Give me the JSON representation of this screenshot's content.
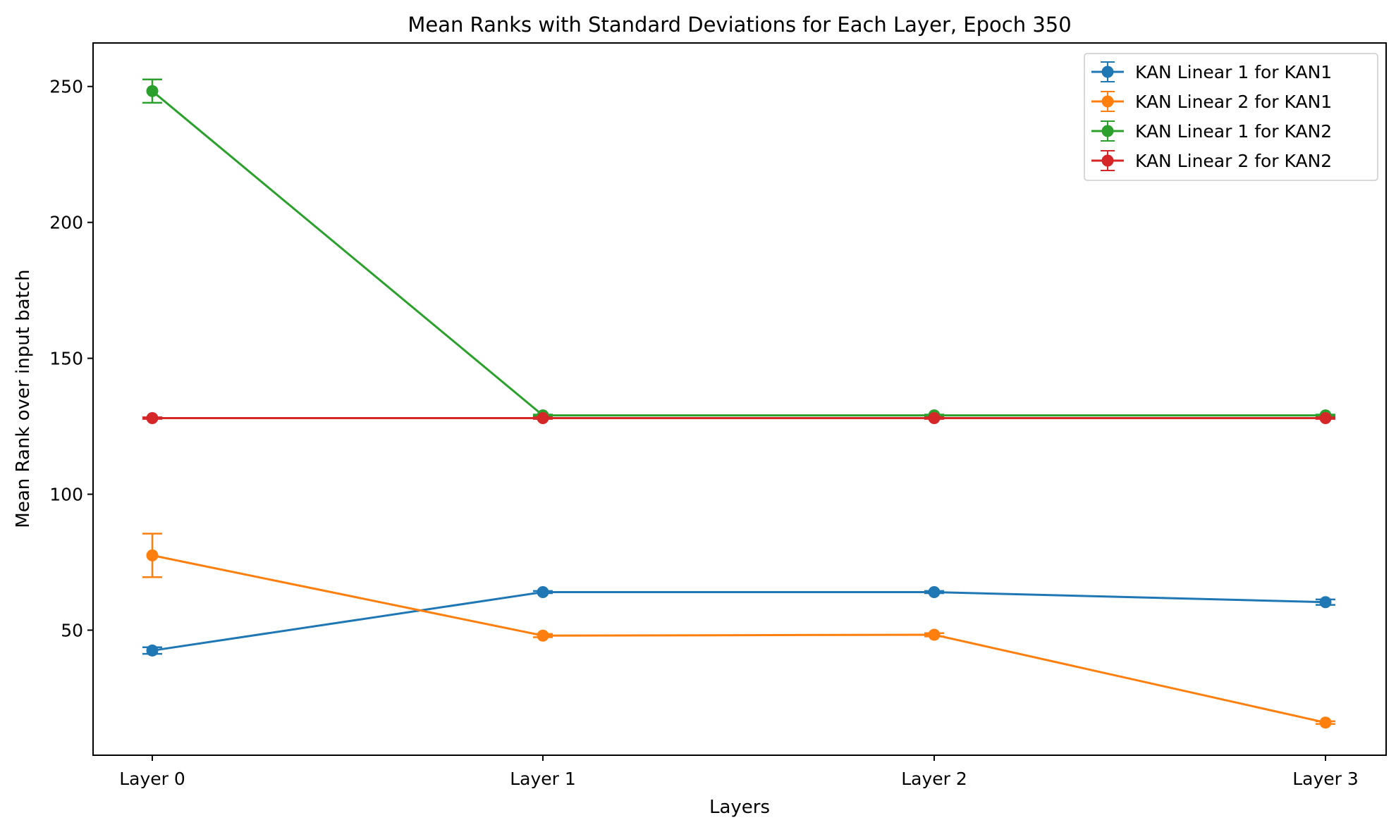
{
  "chart_data": {
    "type": "line",
    "title": "Mean Ranks with Standard Deviations for Each Layer, Epoch 350",
    "xlabel": "Layers",
    "ylabel": "Mean Rank over input batch",
    "categories": [
      "Layer 0",
      "Layer 1",
      "Layer 2",
      "Layer 3"
    ],
    "ylim": [
      4,
      266
    ],
    "yticks": [
      50,
      100,
      150,
      200,
      250
    ],
    "grid": false,
    "legend_position": "top-right",
    "error_bars": true,
    "series": [
      {
        "name": "KAN Linear 1 for KAN1",
        "color": "#1f77b4",
        "values": [
          42.5,
          64,
          64,
          60.3
        ],
        "std": [
          1.2,
          0.4,
          0.4,
          1.0
        ]
      },
      {
        "name": "KAN Linear 2 for KAN1",
        "color": "#ff7f0e",
        "values": [
          77.5,
          48,
          48.3,
          16
        ],
        "std": [
          8.0,
          0.6,
          0.6,
          0.5
        ]
      },
      {
        "name": "KAN Linear 1 for KAN2",
        "color": "#2ca02c",
        "values": [
          248.3,
          129,
          129,
          129
        ],
        "std": [
          4.3,
          0.3,
          0.3,
          0.3
        ]
      },
      {
        "name": "KAN Linear 2 for KAN2",
        "color": "#d62728",
        "values": [
          128,
          128,
          128,
          128
        ],
        "std": [
          0.3,
          0.3,
          0.3,
          0.3
        ]
      }
    ]
  }
}
